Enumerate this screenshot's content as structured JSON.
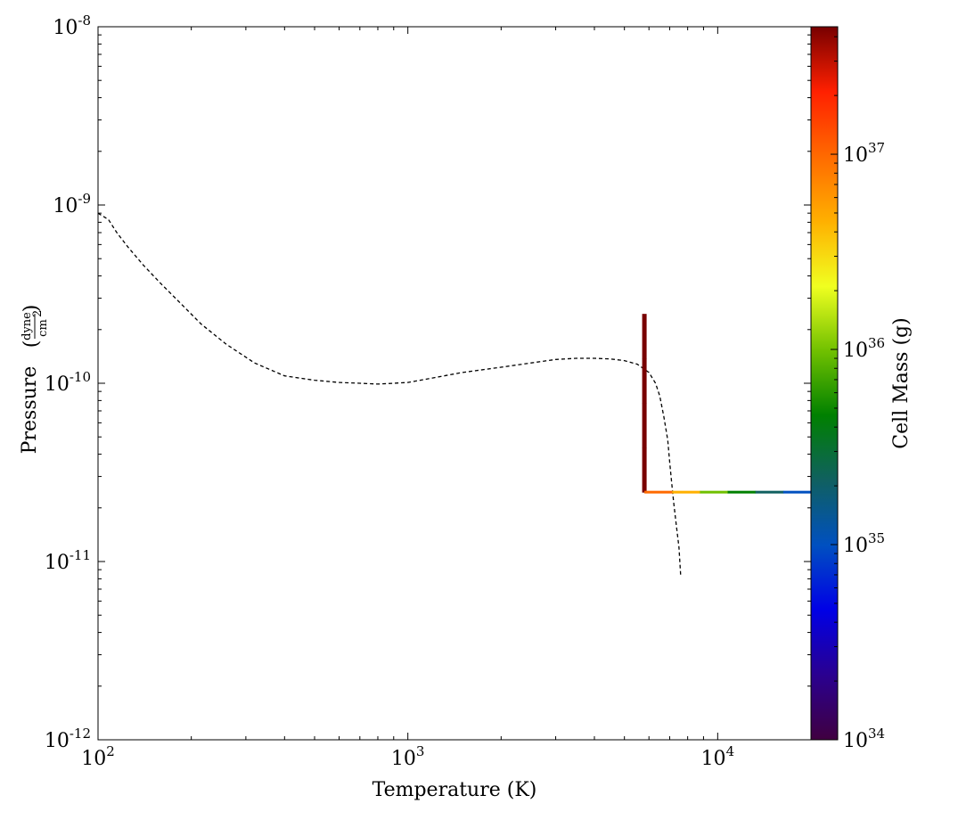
{
  "chart_data": {
    "type": "scatter",
    "xlabel": "Temperature  (K)",
    "ylabel": "Pressure",
    "ylabel_unit_numerator": "dyne",
    "ylabel_unit_denominator": "cm",
    "ylabel_unit_denominator_exp": "2",
    "xscale": "log",
    "yscale": "log",
    "xlim": [
      100,
      20000
    ],
    "ylim": [
      1e-12,
      1e-08
    ],
    "x_ticks": [
      {
        "value": 100,
        "base": "10",
        "exp": "2"
      },
      {
        "value": 1000,
        "base": "10",
        "exp": "3"
      },
      {
        "value": 10000,
        "base": "10",
        "exp": "4"
      }
    ],
    "y_ticks": [
      {
        "value": 1e-12,
        "base": "10",
        "exp": "-12"
      },
      {
        "value": 1e-11,
        "base": "10",
        "exp": "-11"
      },
      {
        "value": 1e-10,
        "base": "10",
        "exp": "-10"
      },
      {
        "value": 1e-09,
        "base": "10",
        "exp": "-9"
      },
      {
        "value": 1e-08,
        "base": "10",
        "exp": "-8"
      }
    ],
    "colorbar": {
      "label": "Cell Mass  (g)",
      "scale": "log",
      "lim": [
        1e+34,
        4.5e+37
      ],
      "colormap": [
        "#400040",
        "#2a0090",
        "#0000e6",
        "#0050c0",
        "#106060",
        "#008000",
        "#70c000",
        "#f0ff20",
        "#ffb000",
        "#ff6a00",
        "#ff2000",
        "#780000"
      ],
      "ticks": [
        {
          "value": 1e+34,
          "base": "10",
          "exp": "34"
        },
        {
          "value": 1e+35,
          "base": "10",
          "exp": "35"
        },
        {
          "value": 1e+36,
          "base": "10",
          "exp": "36"
        },
        {
          "value": 1e+37,
          "base": "10",
          "exp": "37"
        }
      ]
    },
    "series": [
      {
        "style": "dashed",
        "color": "#000000",
        "x": [
          100,
          108,
          115,
          125,
          140,
          160,
          185,
          215,
          260,
          320,
          400,
          500,
          600,
          700,
          800,
          900,
          1000,
          1200,
          1500,
          2000,
          2500,
          3000,
          3500,
          4000,
          4500,
          5000,
          5500,
          6000,
          6300,
          6500,
          6700,
          6900,
          7000,
          7100,
          7200,
          7350,
          7500,
          7600
        ],
        "y": [
          9e-10,
          8.3e-10,
          7e-10,
          5.8e-10,
          4.6e-10,
          3.6e-10,
          2.8e-10,
          2.15e-10,
          1.65e-10,
          1.3e-10,
          1.1e-10,
          1.04e-10,
          1.01e-10,
          1e-10,
          9.9e-11,
          1e-10,
          1.01e-10,
          1.07e-10,
          1.15e-10,
          1.23e-10,
          1.3e-10,
          1.36e-10,
          1.38e-10,
          1.38e-10,
          1.37e-10,
          1.34e-10,
          1.28e-10,
          1.15e-10,
          1e-10,
          8.5e-11,
          6.5e-11,
          4.8e-11,
          3.6e-11,
          2.8e-11,
          2.2e-11,
          1.6e-11,
          1.2e-11,
          8.2e-12
        ]
      },
      {
        "style": "colored-cells",
        "segments": [
          {
            "x0": 5800,
            "x1": 5800,
            "y0": 2.45e-11,
            "y1": 2.45e-10,
            "mass": [
              3e+37,
              3.5e+37,
              4e+37,
              4.3e+37
            ],
            "orientation": "vertical"
          },
          {
            "x0": 5800,
            "x1": 20000,
            "y0": 2.45e-11,
            "y1": 2.45e-11,
            "mass": [
              6e+36,
              3e+36,
              1.2e+36,
              4e+35,
              2e+35,
              1.5e+35
            ],
            "orientation": "horizontal"
          }
        ]
      }
    ]
  }
}
